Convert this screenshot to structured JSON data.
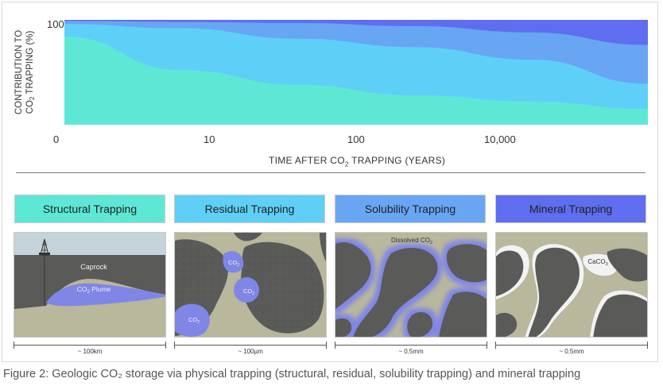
{
  "chart_data": {
    "type": "area",
    "ylabel_line1": "CONTRIBUTION TO",
    "ylabel_line2_prefix": "CO",
    "ylabel_line2_sub": "2",
    "ylabel_line2_suffix": " TRAPPING (%)",
    "y_tick_top": "100",
    "x_ticks": [
      "0",
      "10",
      "100",
      "10,000"
    ],
    "xlabel_prefix": "TIME AFTER CO",
    "xlabel_sub": "2",
    "xlabel_suffix": " TRAPPING (YEARS)",
    "ylim": [
      0,
      100
    ],
    "x": [
      0,
      0.2,
      0.4,
      0.6,
      0.8,
      1.0
    ],
    "series": [
      {
        "color": "#5de8d6",
        "values": [
          84,
          52,
          38,
          28,
          22,
          15
        ]
      },
      {
        "color": "#5ed0f7",
        "values": [
          96,
          92,
          82,
          74,
          62,
          39
        ]
      },
      {
        "color": "#68a6f4",
        "values": [
          99,
          98,
          97,
          94,
          88,
          76
        ]
      },
      {
        "color": "#5f6df0",
        "values": [
          100,
          100,
          100,
          100,
          100,
          100
        ]
      }
    ]
  },
  "panels": [
    {
      "title": "Structural Trapping",
      "color": "#5de8d6",
      "scale": "~ 100km",
      "labels": {
        "caprock": "Caprock",
        "plume_prefix": "CO",
        "plume_sub": "2",
        "plume_suffix": " Plume"
      }
    },
    {
      "title": "Residual Trapping",
      "color": "#5ed0f7",
      "scale": "~ 100µm",
      "labels": {
        "co2_prefix": "CO",
        "co2_sub": "2"
      }
    },
    {
      "title": "Solubility Trapping",
      "color": "#68a6f4",
      "scale": "~ 0.5mm",
      "labels": {
        "dissolved_prefix": "Dissolved CO",
        "dissolved_sub": "2"
      }
    },
    {
      "title": "Mineral Trapping",
      "color": "#5f6df0",
      "scale": "~ 0.5mm",
      "labels": {
        "mineral_prefix": "CaCO",
        "mineral_sub": "3"
      }
    }
  ],
  "colors": {
    "rock": "#5a5a59",
    "pore": "#b9b79c",
    "co2": "#7f86e6",
    "sky": "#c5d3da",
    "mineral": "#f2f2f2"
  },
  "caption": "Figure 2: Geologic CO₂ storage via physical trapping (structural, residual, solubility trapping) and mineral trapping"
}
